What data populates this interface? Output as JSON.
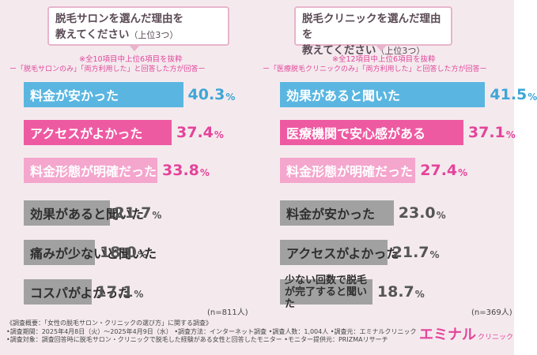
{
  "left_panel": {
    "title_line1": "脱毛サロンを選んだ理由を",
    "title_line2": "教えてください",
    "title_suffix": "（上位3つ）",
    "note1": "※全10項目中上位6項目を抜粋",
    "note2": "ー「脱毛サロンのみ」「両方利用した」と回答した方が回答ー",
    "n": "(n=811人)"
  },
  "right_panel": {
    "title_line1": "脱毛クリニックを選んだ理由を",
    "title_line2": "教えてください",
    "title_suffix": "（上位3つ）",
    "note1": "※全12項目中上位6項目を抜粋",
    "note2": "ー「医療脱毛クリニックのみ」「両方利用した」と回答した方が回答ー",
    "n": "(n=369人)"
  },
  "chart_data": [
    {
      "type": "bar",
      "categories": [
        "料金が安かった",
        "アクセスがよかった",
        "料金形態が明確だった",
        "効果があると聞いた",
        "痛みが少ないと聞いた",
        "コスパがよかった"
      ],
      "values": [
        40.3,
        37.4,
        33.8,
        21.7,
        18.0,
        17.1
      ],
      "value_labels": [
        "40.3",
        "37.4",
        "33.8",
        "21.7",
        "18.0",
        "17.1"
      ],
      "unit": "%",
      "colors": [
        "#5ab6e1",
        "#ee5aa2",
        "#f4a6cd",
        "#a1a1a1",
        "#a1a1a1",
        "#a1a1a1"
      ]
    },
    {
      "type": "bar",
      "categories": [
        "効果があると聞いた",
        "医療機関で安心感がある",
        "料金形態が明確だった",
        "料金が安かった",
        "アクセスがよかった",
        "少ない回数で脱毛が完了すると聞いた"
      ],
      "values": [
        41.5,
        37.1,
        27.4,
        23.0,
        21.7,
        18.7
      ],
      "value_labels": [
        "41.5",
        "37.1",
        "27.4",
        "23.0",
        "21.7",
        "18.7"
      ],
      "unit": "%",
      "colors": [
        "#5ab6e1",
        "#ee5aa2",
        "#f4a6cd",
        "#a1a1a1",
        "#a1a1a1",
        "#a1a1a1"
      ]
    }
  ],
  "survey": {
    "line1": "《調査概要：「女性の脱毛サロン・クリニックの選び方」に関する調査》",
    "line2": "•調査期間：2025年4月8日（火）〜2025年4月9日（水）  •調査方法：インターネット調査  •調査人数：1,004人  •調査元：エミナルクリニック",
    "line3": "•調査対象：調査回答時に脱毛サロン・クリニックで脱毛した経験がある女性と回答したモニター    •モニター提供元：PRIZMAリサーチ"
  },
  "logo": {
    "main": "エミナル",
    "sub": "クリニック"
  }
}
